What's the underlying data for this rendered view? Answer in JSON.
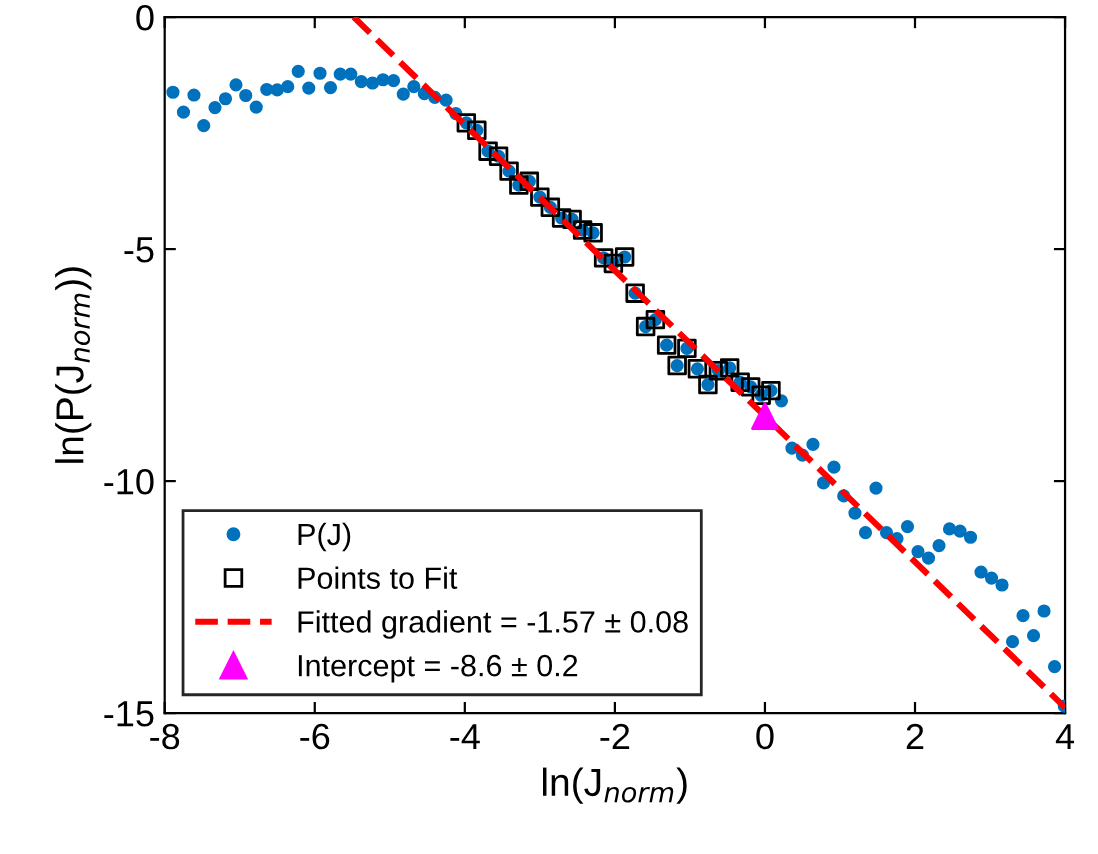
{
  "chart_data": {
    "type": "scatter",
    "xlabel": "ln(J$_{norm}$)",
    "ylabel": "ln(P(J$_{norm}$))",
    "xlim": [
      -8,
      4
    ],
    "ylim": [
      -15,
      0
    ],
    "xticks": [
      -8,
      -6,
      -4,
      -2,
      0,
      2,
      4
    ],
    "yticks": [
      -15,
      -10,
      -5,
      0
    ],
    "grid": false,
    "legend": "bottom left",
    "series": [
      {
        "name": "P(J)",
        "marker": "circle",
        "color": "#0072bd",
        "x": [
          -7.89,
          -7.75,
          -7.61,
          -7.48,
          -7.33,
          -7.19,
          -7.05,
          -6.92,
          -6.78,
          -6.64,
          -6.5,
          -6.36,
          -6.22,
          -6.08,
          -5.93,
          -5.79,
          -5.66,
          -5.52,
          -5.38,
          -5.23,
          -5.09,
          -4.95,
          -4.82,
          -4.68,
          -4.54,
          -4.4,
          -4.25,
          -4.12,
          -3.98,
          -3.84,
          -3.69,
          -3.55,
          -3.41,
          -3.28,
          -3.14,
          -3.0,
          -2.86,
          -2.71,
          -2.57,
          -2.43,
          -2.29,
          -2.15,
          -2.02,
          -1.87,
          -1.73,
          -1.59,
          -1.46,
          -1.31,
          -1.17,
          -1.04,
          -0.9,
          -0.76,
          -0.62,
          -0.47,
          -0.33,
          -0.19,
          -0.05,
          0.08,
          0.22,
          0.36,
          0.5,
          0.64,
          0.78,
          0.92,
          1.05,
          1.2,
          1.34,
          1.48,
          1.62,
          1.76,
          1.9,
          2.04,
          2.18,
          2.32,
          2.46,
          2.6,
          2.74,
          2.88,
          3.02,
          3.16,
          3.3,
          3.44,
          3.58,
          3.72,
          3.86,
          3.99
        ],
        "values": [
          -1.62,
          -2.05,
          -1.68,
          -2.34,
          -1.95,
          -1.76,
          -1.46,
          -1.69,
          -1.94,
          -1.56,
          -1.57,
          -1.5,
          -1.17,
          -1.53,
          -1.21,
          -1.52,
          -1.23,
          -1.23,
          -1.39,
          -1.42,
          -1.35,
          -1.37,
          -1.66,
          -1.5,
          -1.65,
          -1.73,
          -1.79,
          -2.08,
          -2.28,
          -2.44,
          -2.89,
          -3.0,
          -3.32,
          -3.62,
          -3.54,
          -3.88,
          -4.1,
          -4.33,
          -4.36,
          -4.59,
          -4.65,
          -5.19,
          -5.31,
          -5.17,
          -5.95,
          -6.67,
          -6.52,
          -7.07,
          -7.51,
          -7.14,
          -7.58,
          -7.92,
          -7.62,
          -7.56,
          -7.87,
          -7.97,
          -8.15,
          -8.05,
          -8.27,
          -9.29,
          -9.44,
          -9.21,
          -10.04,
          -9.7,
          -10.32,
          -10.69,
          -11.11,
          -10.15,
          -11.11,
          -11.24,
          -10.98,
          -11.52,
          -11.66,
          -11.39,
          -11.03,
          -11.08,
          -11.21,
          -11.96,
          -12.09,
          -12.24,
          -13.46,
          -12.9,
          -13.33,
          -12.8,
          -14.0,
          -14.85
        ]
      },
      {
        "name": "Points to Fit",
        "marker": "square",
        "color": "#000000",
        "x": [
          -3.98,
          -3.84,
          -3.69,
          -3.55,
          -3.41,
          -3.28,
          -3.14,
          -3.0,
          -2.86,
          -2.71,
          -2.57,
          -2.43,
          -2.29,
          -2.15,
          -2.02,
          -1.87,
          -1.73,
          -1.59,
          -1.46,
          -1.31,
          -1.17,
          -1.04,
          -0.9,
          -0.76,
          -0.62,
          -0.47,
          -0.33,
          -0.19,
          -0.05,
          0.08
        ],
        "values": [
          -2.28,
          -2.44,
          -2.89,
          -3.0,
          -3.32,
          -3.62,
          -3.54,
          -3.88,
          -4.1,
          -4.33,
          -4.36,
          -4.59,
          -4.65,
          -5.19,
          -5.31,
          -5.17,
          -5.95,
          -6.67,
          -6.52,
          -7.07,
          -7.51,
          -7.14,
          -7.58,
          -7.92,
          -7.62,
          -7.56,
          -7.87,
          -7.97,
          -8.15,
          -8.05
        ]
      },
      {
        "name": "Fitted gradient = -1.57 ± 0.08",
        "type": "line",
        "line_style": "dashed",
        "marker": "none",
        "color": "#ff0000",
        "x": [
          -5.48,
          4
        ],
        "values": [
          0,
          -14.88
        ]
      },
      {
        "name": "Intercept = -8.6 ± 0.2",
        "marker": "triangle",
        "color": "#ff00ff",
        "x": [
          0
        ],
        "values": [
          -8.6
        ]
      }
    ]
  }
}
